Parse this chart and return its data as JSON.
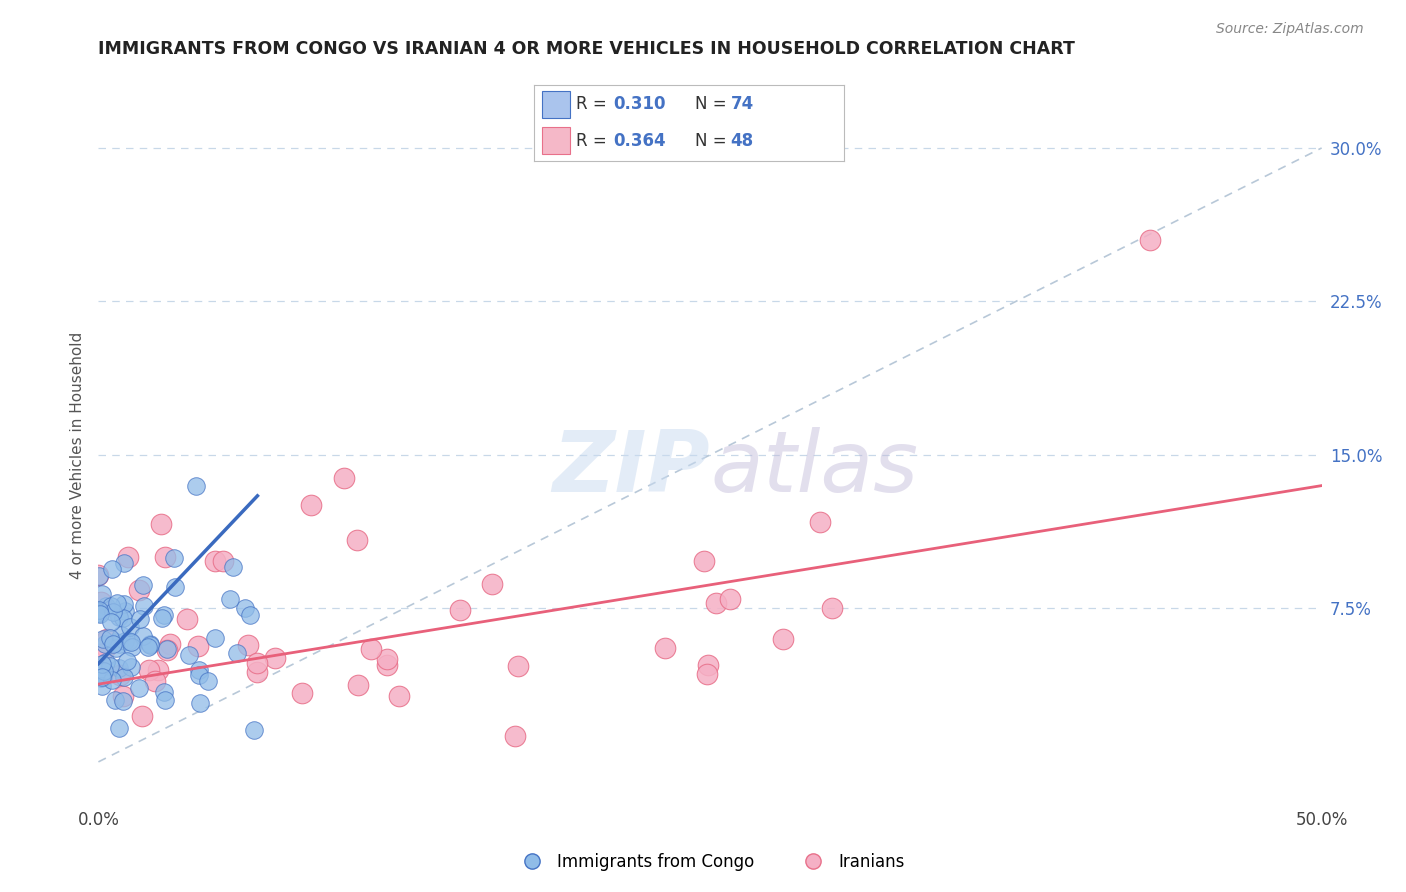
{
  "title": "IMMIGRANTS FROM CONGO VS IRANIAN 4 OR MORE VEHICLES IN HOUSEHOLD CORRELATION CHART",
  "source": "Source: ZipAtlas.com",
  "xlim": [
    0.0,
    0.5
  ],
  "ylim": [
    -0.02,
    0.32
  ],
  "yticks_right": [
    0.075,
    0.15,
    0.225,
    0.3
  ],
  "ytick_labels_right": [
    "7.5%",
    "15.0%",
    "22.5%",
    "30.0%"
  ],
  "xtick_labels": [
    "0.0%",
    "50.0%"
  ],
  "xticks": [
    0.0,
    0.5
  ],
  "legend_entries": [
    {
      "R": "0.310",
      "N": "74",
      "color": "#aac4ed"
    },
    {
      "R": "0.364",
      "N": "48",
      "color": "#f5b8c8"
    }
  ],
  "legend_labels_bottom": [
    "Immigrants from Congo",
    "Iranians"
  ],
  "watermark_zip": "ZIP",
  "watermark_atlas": "atlas",
  "congo_scatter_face": "#90bce8",
  "congo_scatter_edge": "#4472c4",
  "iran_scatter_face": "#f5b0c5",
  "iran_scatter_edge": "#e8708a",
  "congo_line_color": "#3a6abf",
  "iran_line_color": "#e8607a",
  "dashed_line_color": "#b8c8d8",
  "grid_color": "#c8d8e8",
  "background_color": "#ffffff",
  "title_color": "#222222",
  "source_color": "#888888",
  "tick_color_right": "#4472c4",
  "tick_color_x": "#444444",
  "ylabel_color": "#555555",
  "congo_line_x0": 0.0,
  "congo_line_x1": 0.065,
  "congo_line_y0": 0.048,
  "congo_line_y1": 0.13,
  "iran_line_x0": 0.0,
  "iran_line_x1": 0.5,
  "iran_line_y0": 0.038,
  "iran_line_y1": 0.135
}
